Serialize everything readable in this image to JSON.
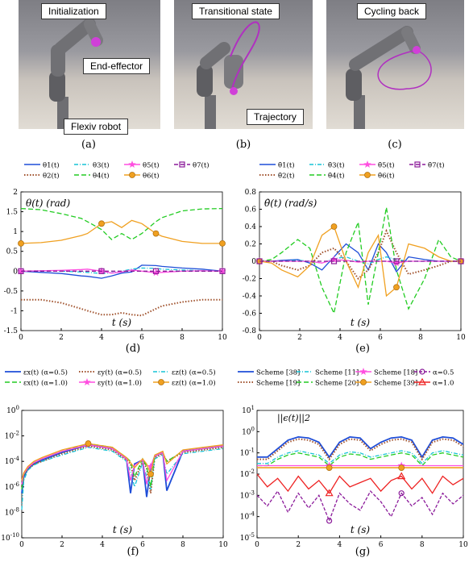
{
  "top_panels": [
    {
      "header": "Initialization",
      "callouts": [
        "End-effector",
        "Flexiv robot"
      ],
      "caption": "(a)"
    },
    {
      "header": "Transitional state",
      "callouts": [
        "Trajectory"
      ],
      "caption": "(b)"
    },
    {
      "header": "Cycling back",
      "callouts": [],
      "caption": "(c)"
    }
  ],
  "captions": {
    "d": "(d)",
    "e": "(e)",
    "f": "(f)",
    "g": "(g)"
  },
  "colors": {
    "blue": "#1f4ed8",
    "cyan": "#17c3d6",
    "magenta": "#ff4fe0",
    "purple": "#8b1a9a",
    "brown": "#a0522d",
    "green": "#22cc22",
    "orange": "#f0a020",
    "red": "#ee2222",
    "robot": "#6e6e72",
    "traj": "#b030c0"
  },
  "chart_data": [
    {
      "id": "d",
      "type": "line",
      "ylabel": "θ(t) (rad)",
      "xlabel": "t (s)",
      "xlim": [
        0,
        10
      ],
      "ylim": [
        -1.5,
        2
      ],
      "xticks": [
        "0",
        "2",
        "4",
        "6",
        "8",
        "10"
      ],
      "yticks": [
        "-1.5",
        "-1",
        "-0.5",
        "0",
        "0.5",
        "1",
        "1.5",
        "2"
      ],
      "legend": [
        "θ1(t)",
        "θ3(t)",
        "θ5(t)",
        "θ7(t)",
        "θ2(t)",
        "θ4(t)",
        "θ6(t)"
      ],
      "x": [
        0,
        1,
        2,
        3,
        3.3,
        4,
        4.5,
        5,
        5.5,
        6,
        6.7,
        7,
        8,
        9,
        10
      ],
      "series": [
        {
          "name": "θ1(t)",
          "values": [
            0,
            -0.03,
            -0.06,
            -0.12,
            -0.13,
            -0.18,
            -0.12,
            -0.05,
            -0.02,
            0.15,
            0.14,
            0.12,
            0.08,
            0.05,
            0
          ]
        },
        {
          "name": "θ2(t)",
          "values": [
            -0.72,
            -0.72,
            -0.8,
            -0.95,
            -1.0,
            -1.1,
            -1.1,
            -1.05,
            -1.1,
            -1.12,
            -0.95,
            -0.88,
            -0.78,
            -0.72,
            -0.72
          ]
        },
        {
          "name": "θ3(t)",
          "values": [
            0,
            0.01,
            0.0,
            -0.02,
            -0.03,
            -0.06,
            -0.04,
            0.0,
            0.05,
            0.08,
            0.07,
            0.05,
            0.03,
            0.01,
            0
          ]
        },
        {
          "name": "θ4(t)",
          "values": [
            1.58,
            1.55,
            1.45,
            1.33,
            1.25,
            1.05,
            0.8,
            0.95,
            0.8,
            0.95,
            1.25,
            1.35,
            1.52,
            1.57,
            1.58
          ]
        },
        {
          "name": "θ5(t)",
          "values": [
            0,
            0.01,
            0.02,
            0.04,
            0.05,
            0.0,
            -0.05,
            -0.02,
            0.03,
            0.0,
            -0.04,
            -0.03,
            0.0,
            0.01,
            0
          ]
        },
        {
          "name": "θ6(t)",
          "values": [
            0.7,
            0.72,
            0.78,
            0.9,
            0.95,
            1.2,
            1.25,
            1.1,
            1.28,
            1.2,
            0.95,
            0.88,
            0.75,
            0.7,
            0.7
          ]
        },
        {
          "name": "θ7(t)",
          "values": [
            0,
            0,
            0,
            0,
            0,
            0,
            0,
            0,
            0,
            0,
            0,
            0,
            0,
            0,
            0
          ]
        }
      ]
    },
    {
      "id": "e",
      "type": "line",
      "ylabel": "θ̇(t) (rad/s)",
      "xlabel": "t (s)",
      "xlim": [
        0,
        10
      ],
      "ylim": [
        -0.8,
        0.8
      ],
      "xticks": [
        "0",
        "2",
        "4",
        "6",
        "8",
        "10"
      ],
      "yticks": [
        "-0.8",
        "-0.6",
        "-0.4",
        "-0.2",
        "0",
        "0.2",
        "0.4",
        "0.6",
        "0.8"
      ],
      "legend": [
        "θ̇1(t)",
        "θ̇3(t)",
        "θ̇5(t)",
        "θ̇7(t)",
        "θ̇2(t)",
        "θ̇4(t)",
        "θ̇6(t)"
      ],
      "x": [
        0,
        0.6,
        1.1,
        1.9,
        2.5,
        3.1,
        3.7,
        4.3,
        4.9,
        5.4,
        5.9,
        6.3,
        6.8,
        7.4,
        8.2,
        8.9,
        9.5,
        10
      ],
      "series": [
        {
          "name": "θ̇1(t)",
          "values": [
            0,
            0,
            0.01,
            0.02,
            -0.02,
            -0.1,
            0.05,
            0.2,
            0.1,
            -0.1,
            0.2,
            0.1,
            -0.12,
            0.05,
            0.02,
            0,
            0,
            0
          ]
        },
        {
          "name": "θ̇2(t)",
          "values": [
            0,
            0,
            -0.05,
            -0.1,
            -0.05,
            0.1,
            0.15,
            0.0,
            -0.2,
            -0.1,
            0.1,
            0.35,
            0.1,
            -0.15,
            -0.1,
            -0.05,
            0,
            0
          ]
        },
        {
          "name": "θ̇3(t)",
          "values": [
            0,
            0,
            0,
            0.01,
            0.0,
            -0.02,
            0.03,
            0.05,
            0,
            -0.03,
            0.02,
            0.05,
            0.02,
            0,
            0,
            0,
            0,
            0
          ]
        },
        {
          "name": "θ̇4(t)",
          "values": [
            0,
            0.02,
            0.1,
            0.25,
            0.15,
            -0.3,
            -0.6,
            0.1,
            0.45,
            -0.5,
            0.1,
            0.62,
            -0.1,
            -0.55,
            -0.2,
            0.25,
            0.05,
            0
          ]
        },
        {
          "name": "θ̇5(t)",
          "values": [
            0,
            0,
            0,
            0,
            0,
            -0.02,
            0.02,
            0.01,
            -0.01,
            0,
            0,
            0,
            -0.02,
            0,
            0,
            0,
            0,
            0
          ]
        },
        {
          "name": "θ̇6(t)",
          "values": [
            0,
            -0.02,
            -0.1,
            -0.18,
            -0.05,
            0.3,
            0.4,
            0.0,
            -0.3,
            0.1,
            0.3,
            -0.4,
            -0.3,
            0.2,
            0.15,
            0.05,
            0,
            0
          ]
        },
        {
          "name": "θ̇7(t)",
          "values": [
            0,
            0,
            0,
            0,
            0,
            0,
            0,
            0,
            0,
            0,
            0,
            0,
            0,
            0,
            0,
            0,
            0,
            0
          ]
        }
      ]
    },
    {
      "id": "f",
      "type": "line",
      "log_y": true,
      "xlabel": "t (s)",
      "xlim": [
        0,
        10
      ],
      "ylim_exp": [
        -10,
        0
      ],
      "xticks": [
        "0",
        "2",
        "4",
        "6",
        "8",
        "10"
      ],
      "yticks": [
        "10-10",
        "10-8",
        "10-6",
        "10-4",
        "10-2",
        "100"
      ],
      "legend": [
        "εx(t) (α=0.5)",
        "εy(t) (α=0.5)",
        "εz(t) (α=0.5)",
        "εx(t) (α=1.0)",
        "εy(t) (α=1.0)",
        "εz(t) (α=1.0)"
      ],
      "x": [
        0,
        0.1,
        0.3,
        0.6,
        1.0,
        2.0,
        3.3,
        4.5,
        5.2,
        5.4,
        5.6,
        6.0,
        6.2,
        6.4,
        6.6,
        7.0,
        7.2,
        8.0,
        9.0,
        10
      ],
      "log10_values": [
        {
          "name": "εx(t) (α=0.5)",
          "values": [
            -6.5,
            -5.2,
            -4.6,
            -4.2,
            -3.9,
            -3.3,
            -2.7,
            -3.0,
            -3.8,
            -6.5,
            -4.2,
            -3.9,
            -6.8,
            -4.5,
            -3.6,
            -3.3,
            -6.3,
            -3.2,
            -3.0,
            -2.8
          ]
        },
        {
          "name": "εy(t) (α=0.5)",
          "values": [
            -6.0,
            -5.0,
            -4.6,
            -4.2,
            -4.0,
            -3.4,
            -2.8,
            -3.1,
            -3.9,
            -4.2,
            -5.5,
            -4.0,
            -4.5,
            -6.5,
            -3.7,
            -3.4,
            -4.0,
            -3.3,
            -3.1,
            -2.9
          ]
        },
        {
          "name": "εz(t) (α=0.5)",
          "values": [
            -7.8,
            -5.5,
            -4.7,
            -4.3,
            -4.0,
            -3.5,
            -2.9,
            -3.2,
            -4.0,
            -4.8,
            -6.0,
            -4.1,
            -5.2,
            -6.2,
            -3.8,
            -3.5,
            -5.0,
            -3.4,
            -3.2,
            -3.0
          ]
        },
        {
          "name": "εx(t) (α=1.0)",
          "values": [
            -6.2,
            -5.1,
            -4.5,
            -4.1,
            -3.8,
            -3.2,
            -2.6,
            -2.9,
            -3.7,
            -4.0,
            -5.2,
            -3.8,
            -4.4,
            -6.0,
            -3.6,
            -3.3,
            -4.0,
            -3.2,
            -3.0,
            -2.8
          ]
        },
        {
          "name": "εy(t) (α=1.0)",
          "values": [
            -5.8,
            -5.0,
            -4.5,
            -4.1,
            -3.8,
            -3.2,
            -2.7,
            -3.0,
            -3.8,
            -5.5,
            -4.3,
            -3.9,
            -5.8,
            -4.4,
            -3.6,
            -3.3,
            -5.5,
            -3.2,
            -3.0,
            -2.8
          ]
        },
        {
          "name": "εz(t) (α=1.0)",
          "values": [
            -5.5,
            -4.9,
            -4.4,
            -4.0,
            -3.7,
            -3.1,
            -2.6,
            -2.9,
            -3.7,
            -4.1,
            -4.5,
            -3.8,
            -4.2,
            -5.0,
            -3.5,
            -3.2,
            -4.2,
            -3.1,
            -2.9,
            -2.7
          ]
        }
      ]
    },
    {
      "id": "g",
      "type": "line",
      "log_y": true,
      "xlabel": "t (s)",
      "annotation": "||ϵ(t)||2",
      "xlim": [
        0,
        10
      ],
      "ylim_exp": [
        -5,
        1
      ],
      "xticks": [
        "0",
        "2",
        "4",
        "6",
        "8",
        "10"
      ],
      "yticks": [
        "10-5",
        "10-4",
        "10-3",
        "10-2",
        "10-1",
        "100",
        "101"
      ],
      "legend": [
        "Scheme [38]",
        "Scheme [11]",
        "Scheme [18]",
        "α=0.5",
        "Scheme [19]",
        "Scheme [20]",
        "Scheme [39]",
        "α=1.0"
      ],
      "x": [
        0,
        0.5,
        1.0,
        1.5,
        2.0,
        2.5,
        3.0,
        3.5,
        4.0,
        4.5,
        5.0,
        5.5,
        6.0,
        6.5,
        7.0,
        7.5,
        8.0,
        8.5,
        9.0,
        9.5,
        10
      ],
      "log10_values": [
        {
          "name": "Scheme [38]",
          "values": [
            -1.2,
            -1.2,
            -0.8,
            -0.4,
            -0.25,
            -0.3,
            -0.5,
            -1.2,
            -0.5,
            -0.25,
            -0.3,
            -0.8,
            -0.5,
            -0.3,
            -0.25,
            -0.4,
            -1.2,
            -0.4,
            -0.25,
            -0.3,
            -0.6
          ]
        },
        {
          "name": "Scheme [19]",
          "values": [
            -1.3,
            -1.3,
            -0.9,
            -0.5,
            -0.35,
            -0.4,
            -0.6,
            -1.3,
            -0.6,
            -0.35,
            -0.4,
            -0.9,
            -0.6,
            -0.4,
            -0.35,
            -0.5,
            -1.3,
            -0.5,
            -0.35,
            -0.4,
            -0.7
          ]
        },
        {
          "name": "Scheme [11]",
          "values": [
            -1.5,
            -1.5,
            -1.2,
            -1.0,
            -0.9,
            -1.0,
            -1.1,
            -1.5,
            -1.1,
            -0.95,
            -1.0,
            -1.2,
            -1.1,
            -1.0,
            -0.9,
            -1.0,
            -1.5,
            -1.0,
            -0.9,
            -1.0,
            -1.1
          ]
        },
        {
          "name": "Scheme [20]",
          "values": [
            -1.6,
            -1.6,
            -1.3,
            -1.1,
            -1.0,
            -1.1,
            -1.2,
            -1.6,
            -1.2,
            -1.05,
            -1.1,
            -1.3,
            -1.2,
            -1.1,
            -1.0,
            -1.1,
            -1.6,
            -1.1,
            -1.0,
            -1.1,
            -1.2
          ]
        },
        {
          "name": "Scheme [18]",
          "values": [
            -1.6,
            -1.6,
            -1.6,
            -1.6,
            -1.6,
            -1.6,
            -1.6,
            -1.6,
            -1.6,
            -1.6,
            -1.6,
            -1.6,
            -1.6,
            -1.6,
            -1.6,
            -1.6,
            -1.6,
            -1.6,
            -1.6,
            -1.6,
            -1.6
          ]
        },
        {
          "name": "Scheme [39]",
          "values": [
            -1.7,
            -1.7,
            -1.7,
            -1.7,
            -1.7,
            -1.7,
            -1.7,
            -1.7,
            -1.7,
            -1.7,
            -1.7,
            -1.7,
            -1.7,
            -1.7,
            -1.7,
            -1.7,
            -1.7,
            -1.7,
            -1.7,
            -1.7,
            -1.7
          ]
        },
        {
          "name": "α=0.5",
          "values": [
            -3.0,
            -3.5,
            -2.8,
            -3.8,
            -2.9,
            -3.6,
            -3.0,
            -4.2,
            -2.9,
            -3.4,
            -3.7,
            -2.8,
            -3.3,
            -4.0,
            -2.9,
            -3.5,
            -3.1,
            -3.9,
            -2.9,
            -3.4,
            -3.0
          ]
        },
        {
          "name": "α=1.0",
          "values": [
            -2.0,
            -2.6,
            -2.2,
            -2.8,
            -2.1,
            -2.7,
            -2.3,
            -2.9,
            -2.1,
            -2.6,
            -2.4,
            -2.2,
            -2.8,
            -2.3,
            -2.1,
            -2.7,
            -2.2,
            -2.9,
            -2.1,
            -2.5,
            -2.2
          ]
        }
      ]
    }
  ]
}
